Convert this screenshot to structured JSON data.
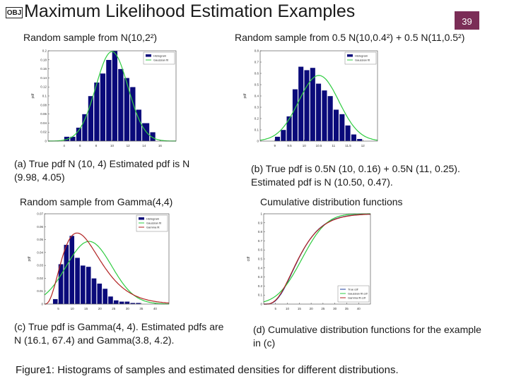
{
  "header": {
    "obj_badge": "OBJ",
    "title": "Maximum Likelihood Estimation Examples",
    "slide_number": "39"
  },
  "panels": {
    "a": {
      "subtitle": "Random sample from N(10,2²)",
      "caption": "(a) True pdf N (10, 4) Estimated pdf  is N (9.98, 4.05)"
    },
    "b": {
      "subtitle": "Random sample from 0.5 N(10,0.4²) + 0.5 N(11,0.5²)",
      "caption": "(b) True pdf is 0.5N (10, 0.16) + 0.5N (11, 0.25). Estimated pdf is N (10.50, 0.47)."
    },
    "c": {
      "subtitle": "Random sample from Gamma(4,4)",
      "caption": "(c) True pdf is Gamma(4, 4). Estimated pdfs are N (16.1, 67.4) and Gamma(3.8, 4.2)."
    },
    "d": {
      "subtitle": "Cumulative distribution functions",
      "caption": "(d) Cumulative distribution functions for the example in (c)"
    }
  },
  "figure_caption": "Figure1: Histograms of samples and estimated densities for different distributions.",
  "colors": {
    "bar": "#0a0a7a",
    "gaussian": "#2ecc40",
    "gamma": "#b22222",
    "true_cdf": "#1f3f9f",
    "slide_badge": "#7b2d57"
  },
  "chart_data": [
    {
      "id": "a",
      "type": "bar",
      "ylabel": "pdf",
      "xlim": [
        2,
        18
      ],
      "ylim": [
        0,
        0.2
      ],
      "xticks": [
        4,
        6,
        8,
        10,
        12,
        14,
        16
      ],
      "yticks": [
        0,
        0.02,
        0.04,
        0.06,
        0.08,
        0.1,
        0.12,
        0.14,
        0.16,
        0.18,
        0.2
      ],
      "legend": [
        "Histogram",
        "Gaussian fit"
      ],
      "legend_position": "top-right",
      "bin_edges": [
        4,
        4.75,
        5.5,
        6.25,
        7,
        7.75,
        8.5,
        9.25,
        10,
        10.75,
        11.5,
        12.25,
        13,
        13.75,
        14.75,
        15.5
      ],
      "values": [
        0.01,
        0.01,
        0.03,
        0.06,
        0.1,
        0.13,
        0.15,
        0.18,
        0.2,
        0.16,
        0.14,
        0.12,
        0.07,
        0.04,
        0.02
      ],
      "series": [
        {
          "name": "Gaussian fit",
          "kind": "normal",
          "mean": 9.98,
          "var": 4.05
        }
      ]
    },
    {
      "id": "b",
      "type": "bar",
      "ylabel": "pdf",
      "xlim": [
        8.5,
        12.5
      ],
      "ylim": [
        0,
        0.8
      ],
      "xticks": [
        9,
        9.5,
        10,
        10.5,
        11,
        11.5,
        12
      ],
      "yticks": [
        0,
        0.1,
        0.2,
        0.3,
        0.4,
        0.5,
        0.6,
        0.7,
        0.8
      ],
      "legend": [
        "Histogram",
        "Gaussian fit"
      ],
      "legend_position": "top-right",
      "bin_edges": [
        9.0,
        9.2,
        9.4,
        9.6,
        9.8,
        10.0,
        10.2,
        10.4,
        10.6,
        10.8,
        11.0,
        11.2,
        11.4,
        11.6,
        11.8,
        12.0
      ],
      "values": [
        0.04,
        0.1,
        0.22,
        0.46,
        0.66,
        0.63,
        0.65,
        0.51,
        0.45,
        0.4,
        0.28,
        0.24,
        0.14,
        0.06,
        0.02
      ],
      "series": [
        {
          "name": "Gaussian fit",
          "kind": "normal",
          "mean": 10.5,
          "var": 0.47
        }
      ]
    },
    {
      "id": "c",
      "type": "bar",
      "ylabel": "pdf",
      "xlim": [
        0,
        45
      ],
      "ylim": [
        0,
        0.07
      ],
      "xticks": [
        5,
        10,
        15,
        20,
        25,
        30,
        35,
        40
      ],
      "yticks": [
        0,
        0.01,
        0.02,
        0.03,
        0.04,
        0.05,
        0.06,
        0.07
      ],
      "legend": [
        "Histogram",
        "Gaussian fit",
        "Gamma fit"
      ],
      "legend_position": "top-right",
      "bin_edges": [
        3,
        5,
        7,
        9,
        11,
        13,
        15,
        17,
        19,
        21,
        23,
        25,
        27,
        29,
        31,
        33,
        35
      ],
      "values": [
        0.004,
        0.031,
        0.046,
        0.053,
        0.036,
        0.03,
        0.029,
        0.02,
        0.016,
        0.012,
        0.006,
        0.003,
        0.002,
        0.002,
        0.001,
        0.001
      ],
      "series": [
        {
          "name": "Gaussian fit",
          "kind": "normal",
          "mean": 16.1,
          "var": 67.4
        },
        {
          "name": "Gamma fit",
          "kind": "gamma",
          "shape": 3.8,
          "scale": 4.2
        }
      ]
    },
    {
      "id": "d",
      "type": "line",
      "ylabel": "cdf",
      "xlim": [
        0,
        45
      ],
      "ylim": [
        0,
        1
      ],
      "xticks": [
        5,
        10,
        15,
        20,
        25,
        30,
        35,
        40
      ],
      "yticks": [
        0,
        0.1,
        0.2,
        0.3,
        0.4,
        0.5,
        0.6,
        0.7,
        0.8,
        0.9,
        1
      ],
      "legend": [
        "True cdf",
        "Gaussian fit cdf",
        "Gamma fit cdf"
      ],
      "legend_position": "bottom-right",
      "series": [
        {
          "name": "True cdf",
          "kind": "gamma_cdf",
          "shape": 4,
          "scale": 4
        },
        {
          "name": "Gaussian fit cdf",
          "kind": "normal_cdf",
          "mean": 16.1,
          "var": 67.4
        },
        {
          "name": "Gamma fit cdf",
          "kind": "gamma_cdf",
          "shape": 3.8,
          "scale": 4.2
        }
      ]
    }
  ]
}
